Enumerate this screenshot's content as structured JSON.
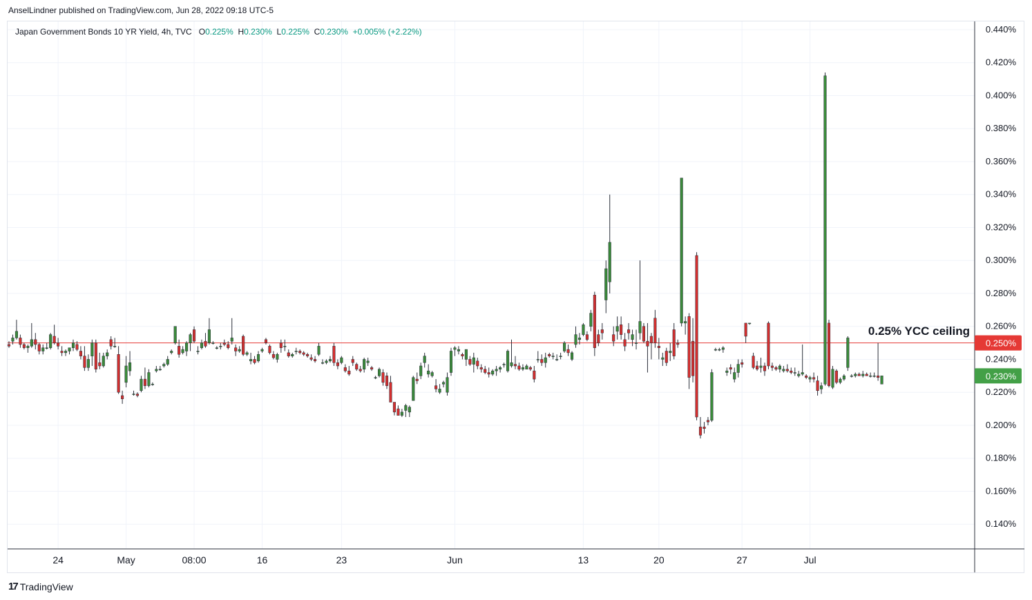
{
  "publisher": "AnselLindner published on TradingView.com, Jun 28, 2022 09:18 UTC-5",
  "legend": {
    "symbol": "Japan Government Bonds 10 YR Yield, 4h, TVC",
    "open_label": "O",
    "open": "0.225%",
    "high_label": "H",
    "high": "0.230%",
    "low_label": "L",
    "low": "0.225%",
    "close_label": "C",
    "close": "0.230%",
    "change": "+0.005% (+2.22%)"
  },
  "annotation": "0.25% YCC ceiling",
  "footer": {
    "brand": "TradingView",
    "icon": "tradingview-logo-icon"
  },
  "colors": {
    "up": "#3a8a3a",
    "down": "#d32f2f",
    "ceiling": "#e53935",
    "last_price": "#43a047",
    "grid": "#f0f3fa"
  },
  "chart_data": {
    "type": "candlestick",
    "title": "Japan Government Bonds 10 YR Yield, 4h, TVC",
    "ylim": [
      0.125,
      0.445
    ],
    "y_ticks": [
      "0.140%",
      "0.160%",
      "0.180%",
      "0.200%",
      "0.220%",
      "0.240%",
      "0.260%",
      "0.280%",
      "0.300%",
      "0.320%",
      "0.340%",
      "0.360%",
      "0.380%",
      "0.400%",
      "0.420%",
      "0.440%"
    ],
    "x_ticks": [
      {
        "label": "24",
        "bar": 13
      },
      {
        "label": "May",
        "bar": 31
      },
      {
        "label": "08:00",
        "bar": 49
      },
      {
        "label": "16",
        "bar": 67
      },
      {
        "label": "23",
        "bar": 88
      },
      {
        "label": "Jun",
        "bar": 118
      },
      {
        "label": "13",
        "bar": 152
      },
      {
        "label": "20",
        "bar": 172
      },
      {
        "label": "27",
        "bar": 194
      },
      {
        "label": "Jul",
        "bar": 212
      }
    ],
    "ceiling": {
      "value": 0.25,
      "label": "0.250%"
    },
    "last_price": {
      "value": 0.23,
      "label": "0.230%"
    },
    "candles": [
      [
        0.249,
        0.251,
        0.247,
        0.248
      ],
      [
        0.251,
        0.255,
        0.249,
        0.253
      ],
      [
        0.253,
        0.264,
        0.252,
        0.257
      ],
      [
        0.253,
        0.255,
        0.247,
        0.249
      ],
      [
        0.249,
        0.25,
        0.246,
        0.247
      ],
      [
        0.247,
        0.249,
        0.244,
        0.248
      ],
      [
        0.248,
        0.262,
        0.247,
        0.252
      ],
      [
        0.252,
        0.256,
        0.246,
        0.249
      ],
      [
        0.249,
        0.25,
        0.243,
        0.245
      ],
      [
        0.245,
        0.249,
        0.243,
        0.247
      ],
      [
        0.247,
        0.25,
        0.246,
        0.247
      ],
      [
        0.247,
        0.256,
        0.246,
        0.255
      ],
      [
        0.254,
        0.261,
        0.249,
        0.25
      ],
      [
        0.25,
        0.253,
        0.246,
        0.248
      ],
      [
        0.245,
        0.248,
        0.242,
        0.244
      ],
      [
        0.244,
        0.246,
        0.242,
        0.245
      ],
      [
        0.245,
        0.247,
        0.243,
        0.247
      ],
      [
        0.247,
        0.252,
        0.245,
        0.25
      ],
      [
        0.249,
        0.251,
        0.245,
        0.246
      ],
      [
        0.245,
        0.248,
        0.24,
        0.242
      ],
      [
        0.242,
        0.248,
        0.233,
        0.235
      ],
      [
        0.235,
        0.243,
        0.233,
        0.24
      ],
      [
        0.242,
        0.252,
        0.236,
        0.25
      ],
      [
        0.25,
        0.252,
        0.232,
        0.234
      ],
      [
        0.238,
        0.244,
        0.234,
        0.236
      ],
      [
        0.236,
        0.244,
        0.235,
        0.242
      ],
      [
        0.242,
        0.246,
        0.24,
        0.244
      ],
      [
        0.252,
        0.254,
        0.246,
        0.248
      ],
      [
        0.248,
        0.253,
        0.247,
        0.248
      ],
      [
        0.243,
        0.248,
        0.219,
        0.22
      ],
      [
        0.218,
        0.221,
        0.213,
        0.216
      ],
      [
        0.226,
        0.242,
        0.223,
        0.236
      ],
      [
        0.233,
        0.245,
        0.23,
        0.238
      ],
      [
        0.219,
        0.221,
        0.218,
        0.219
      ],
      [
        0.219,
        0.22,
        0.217,
        0.218
      ],
      [
        0.221,
        0.23,
        0.22,
        0.228
      ],
      [
        0.228,
        0.235,
        0.222,
        0.224
      ],
      [
        0.224,
        0.234,
        0.223,
        0.232
      ],
      [
        0.225,
        0.226,
        0.224,
        0.225
      ],
      [
        0.233,
        0.236,
        0.232,
        0.234
      ],
      [
        0.234,
        0.236,
        0.233,
        0.234
      ],
      [
        0.236,
        0.238,
        0.235,
        0.237
      ],
      [
        0.237,
        0.242,
        0.236,
        0.24
      ],
      [
        0.244,
        0.246,
        0.243,
        0.245
      ],
      [
        0.25,
        0.26,
        0.249,
        0.26
      ],
      [
        0.248,
        0.252,
        0.241,
        0.243
      ],
      [
        0.244,
        0.248,
        0.243,
        0.246
      ],
      [
        0.245,
        0.251,
        0.242,
        0.25
      ],
      [
        0.25,
        0.256,
        0.245,
        0.255
      ],
      [
        0.258,
        0.26,
        0.25,
        0.251
      ],
      [
        0.245,
        0.248,
        0.243,
        0.245
      ],
      [
        0.247,
        0.252,
        0.246,
        0.25
      ],
      [
        0.251,
        0.256,
        0.247,
        0.248
      ],
      [
        0.25,
        0.265,
        0.249,
        0.258
      ],
      [
        0.25,
        0.251,
        0.249,
        0.25
      ],
      [
        0.247,
        0.248,
        0.246,
        0.247
      ],
      [
        0.248,
        0.25,
        0.246,
        0.248
      ],
      [
        0.25,
        0.252,
        0.248,
        0.249
      ],
      [
        0.249,
        0.251,
        0.246,
        0.247
      ],
      [
        0.251,
        0.265,
        0.249,
        0.253
      ],
      [
        0.247,
        0.249,
        0.242,
        0.245
      ],
      [
        0.245,
        0.248,
        0.244,
        0.246
      ],
      [
        0.254,
        0.255,
        0.242,
        0.243
      ],
      [
        0.243,
        0.245,
        0.242,
        0.244
      ],
      [
        0.239,
        0.244,
        0.237,
        0.24
      ],
      [
        0.24,
        0.242,
        0.237,
        0.238
      ],
      [
        0.239,
        0.245,
        0.238,
        0.243
      ],
      [
        0.245,
        0.247,
        0.244,
        0.246
      ],
      [
        0.252,
        0.253,
        0.249,
        0.25
      ],
      [
        0.248,
        0.249,
        0.243,
        0.244
      ],
      [
        0.243,
        0.245,
        0.24,
        0.241
      ],
      [
        0.24,
        0.244,
        0.238,
        0.243
      ],
      [
        0.25,
        0.252,
        0.244,
        0.247
      ],
      [
        0.248,
        0.252,
        0.245,
        0.248
      ],
      [
        0.244,
        0.246,
        0.241,
        0.242
      ],
      [
        0.242,
        0.244,
        0.241,
        0.243
      ],
      [
        0.245,
        0.247,
        0.243,
        0.245
      ],
      [
        0.245,
        0.246,
        0.243,
        0.244
      ],
      [
        0.244,
        0.245,
        0.242,
        0.243
      ],
      [
        0.243,
        0.244,
        0.241,
        0.242
      ],
      [
        0.241,
        0.243,
        0.239,
        0.24
      ],
      [
        0.24,
        0.242,
        0.238,
        0.239
      ],
      [
        0.243,
        0.25,
        0.242,
        0.248
      ],
      [
        0.238,
        0.24,
        0.237,
        0.238
      ],
      [
        0.238,
        0.24,
        0.237,
        0.239
      ],
      [
        0.239,
        0.242,
        0.238,
        0.24
      ],
      [
        0.248,
        0.25,
        0.236,
        0.238
      ],
      [
        0.238,
        0.24,
        0.234,
        0.236
      ],
      [
        0.238,
        0.242,
        0.237,
        0.241
      ],
      [
        0.235,
        0.237,
        0.232,
        0.233
      ],
      [
        0.233,
        0.236,
        0.23,
        0.231
      ],
      [
        0.24,
        0.242,
        0.236,
        0.238
      ],
      [
        0.237,
        0.238,
        0.233,
        0.234
      ],
      [
        0.234,
        0.236,
        0.232,
        0.233
      ],
      [
        0.234,
        0.241,
        0.232,
        0.24
      ],
      [
        0.238,
        0.241,
        0.236,
        0.239
      ],
      [
        0.235,
        0.236,
        0.233,
        0.234
      ],
      [
        0.229,
        0.23,
        0.228,
        0.229
      ],
      [
        0.23,
        0.235,
        0.229,
        0.234
      ],
      [
        0.232,
        0.234,
        0.224,
        0.226
      ],
      [
        0.23,
        0.232,
        0.222,
        0.224
      ],
      [
        0.226,
        0.23,
        0.214,
        0.214
      ],
      [
        0.214,
        0.214,
        0.206,
        0.208
      ],
      [
        0.21,
        0.212,
        0.206,
        0.206
      ],
      [
        0.206,
        0.21,
        0.205,
        0.208
      ],
      [
        0.209,
        0.213,
        0.205,
        0.212
      ],
      [
        0.208,
        0.212,
        0.205,
        0.211
      ],
      [
        0.215,
        0.23,
        0.215,
        0.229
      ],
      [
        0.228,
        0.232,
        0.225,
        0.227
      ],
      [
        0.23,
        0.238,
        0.228,
        0.236
      ],
      [
        0.238,
        0.244,
        0.235,
        0.242
      ],
      [
        0.231,
        0.237,
        0.229,
        0.233
      ],
      [
        0.23,
        0.233,
        0.229,
        0.232
      ],
      [
        0.224,
        0.228,
        0.22,
        0.222
      ],
      [
        0.22,
        0.225,
        0.219,
        0.222
      ],
      [
        0.225,
        0.227,
        0.223,
        0.226
      ],
      [
        0.22,
        0.232,
        0.218,
        0.229
      ],
      [
        0.232,
        0.247,
        0.23,
        0.245
      ],
      [
        0.246,
        0.248,
        0.242,
        0.247
      ],
      [
        0.245,
        0.248,
        0.243,
        0.246
      ],
      [
        0.243,
        0.244,
        0.24,
        0.242
      ],
      [
        0.24,
        0.246,
        0.236,
        0.246
      ],
      [
        0.24,
        0.242,
        0.236,
        0.237
      ],
      [
        0.237,
        0.244,
        0.232,
        0.241
      ],
      [
        0.239,
        0.241,
        0.234,
        0.236
      ],
      [
        0.235,
        0.237,
        0.232,
        0.234
      ],
      [
        0.234,
        0.236,
        0.231,
        0.232
      ],
      [
        0.232,
        0.235,
        0.229,
        0.231
      ],
      [
        0.231,
        0.234,
        0.23,
        0.233
      ],
      [
        0.233,
        0.236,
        0.23,
        0.234
      ],
      [
        0.234,
        0.236,
        0.232,
        0.235
      ],
      [
        0.237,
        0.238,
        0.235,
        0.237
      ],
      [
        0.233,
        0.246,
        0.232,
        0.245
      ],
      [
        0.236,
        0.252,
        0.235,
        0.238
      ],
      [
        0.237,
        0.242,
        0.234,
        0.236
      ],
      [
        0.236,
        0.238,
        0.233,
        0.234
      ],
      [
        0.234,
        0.237,
        0.233,
        0.235
      ],
      [
        0.234,
        0.237,
        0.234,
        0.236
      ],
      [
        0.235,
        0.236,
        0.233,
        0.234
      ],
      [
        0.233,
        0.236,
        0.226,
        0.228
      ],
      [
        0.24,
        0.245,
        0.238,
        0.24
      ],
      [
        0.24,
        0.243,
        0.236,
        0.238
      ],
      [
        0.238,
        0.244,
        0.235,
        0.241
      ],
      [
        0.243,
        0.244,
        0.241,
        0.242
      ],
      [
        0.242,
        0.244,
        0.24,
        0.242
      ],
      [
        0.24,
        0.243,
        0.239,
        0.24
      ],
      [
        0.242,
        0.244,
        0.24,
        0.242
      ],
      [
        0.245,
        0.251,
        0.244,
        0.25
      ],
      [
        0.246,
        0.249,
        0.242,
        0.244
      ],
      [
        0.24,
        0.245,
        0.239,
        0.244
      ],
      [
        0.249,
        0.26,
        0.247,
        0.255
      ],
      [
        0.252,
        0.256,
        0.249,
        0.253
      ],
      [
        0.255,
        0.262,
        0.254,
        0.261
      ],
      [
        0.255,
        0.257,
        0.251,
        0.252
      ],
      [
        0.26,
        0.27,
        0.257,
        0.268
      ],
      [
        0.279,
        0.281,
        0.242,
        0.247
      ],
      [
        0.255,
        0.258,
        0.248,
        0.25
      ],
      [
        0.258,
        0.262,
        0.252,
        0.256
      ],
      [
        0.276,
        0.3,
        0.268,
        0.295
      ],
      [
        0.287,
        0.34,
        0.28,
        0.311
      ],
      [
        0.255,
        0.26,
        0.248,
        0.251
      ],
      [
        0.257,
        0.266,
        0.252,
        0.26
      ],
      [
        0.261,
        0.266,
        0.252,
        0.255
      ],
      [
        0.252,
        0.256,
        0.245,
        0.248
      ],
      [
        0.258,
        0.262,
        0.252,
        0.256
      ],
      [
        0.252,
        0.258,
        0.248,
        0.255
      ],
      [
        0.25,
        0.258,
        0.246,
        0.25
      ],
      [
        0.256,
        0.3,
        0.252,
        0.263
      ],
      [
        0.26,
        0.262,
        0.25,
        0.251
      ],
      [
        0.251,
        0.262,
        0.232,
        0.248
      ],
      [
        0.254,
        0.256,
        0.24,
        0.25
      ],
      [
        0.265,
        0.27,
        0.247,
        0.25
      ],
      [
        0.248,
        0.253,
        0.24,
        0.247
      ],
      [
        0.24,
        0.244,
        0.236,
        0.241
      ],
      [
        0.245,
        0.247,
        0.236,
        0.238
      ],
      [
        0.244,
        0.25,
        0.239,
        0.245
      ],
      [
        0.258,
        0.262,
        0.24,
        0.242
      ],
      [
        0.25,
        0.252,
        0.247,
        0.249
      ],
      [
        0.262,
        0.35,
        0.26,
        0.35
      ],
      [
        0.262,
        0.266,
        0.255,
        0.263
      ],
      [
        0.266,
        0.268,
        0.222,
        0.229
      ],
      [
        0.251,
        0.265,
        0.226,
        0.23
      ],
      [
        0.303,
        0.305,
        0.203,
        0.205
      ],
      [
        0.199,
        0.205,
        0.192,
        0.194
      ],
      [
        0.199,
        0.202,
        0.195,
        0.198
      ],
      [
        0.203,
        0.205,
        0.2,
        0.202
      ],
      [
        0.203,
        0.234,
        0.202,
        0.232
      ],
      [
        0.246,
        0.247,
        0.245,
        0.246
      ],
      [
        0.246,
        0.247,
        0.245,
        0.246
      ],
      [
        0.246,
        0.248,
        0.244,
        0.247
      ],
      [
        0.232,
        0.235,
        0.23,
        0.233
      ],
      [
        0.235,
        0.237,
        0.231,
        0.234
      ],
      [
        0.228,
        0.235,
        0.226,
        0.232
      ],
      [
        0.232,
        0.24,
        0.229,
        0.237
      ],
      [
        0.238,
        0.24,
        0.235,
        0.237
      ],
      [
        0.262,
        0.262,
        0.25,
        0.254
      ],
      [
        0.262,
        0.262,
        0.261,
        0.262
      ],
      [
        0.242,
        0.244,
        0.234,
        0.235
      ],
      [
        0.236,
        0.239,
        0.233,
        0.234
      ],
      [
        0.235,
        0.241,
        0.232,
        0.236
      ],
      [
        0.236,
        0.238,
        0.23,
        0.233
      ],
      [
        0.262,
        0.263,
        0.234,
        0.236
      ],
      [
        0.236,
        0.238,
        0.233,
        0.235
      ],
      [
        0.235,
        0.236,
        0.233,
        0.234
      ],
      [
        0.234,
        0.237,
        0.232,
        0.236
      ],
      [
        0.233,
        0.236,
        0.232,
        0.234
      ],
      [
        0.234,
        0.237,
        0.232,
        0.233
      ],
      [
        0.233,
        0.235,
        0.231,
        0.232
      ],
      [
        0.232,
        0.235,
        0.23,
        0.232
      ],
      [
        0.23,
        0.233,
        0.229,
        0.231
      ],
      [
        0.231,
        0.249,
        0.23,
        0.232
      ],
      [
        0.23,
        0.231,
        0.228,
        0.229
      ],
      [
        0.228,
        0.23,
        0.226,
        0.229
      ],
      [
        0.229,
        0.232,
        0.226,
        0.228
      ],
      [
        0.227,
        0.23,
        0.218,
        0.221
      ],
      [
        0.222,
        0.226,
        0.219,
        0.224
      ],
      [
        0.225,
        0.414,
        0.224,
        0.412
      ],
      [
        0.262,
        0.264,
        0.223,
        0.224
      ],
      [
        0.223,
        0.236,
        0.222,
        0.234
      ],
      [
        0.233,
        0.234,
        0.225,
        0.226
      ],
      [
        0.226,
        0.229,
        0.225,
        0.228
      ],
      [
        0.228,
        0.231,
        0.227,
        0.23
      ],
      [
        0.235,
        0.254,
        0.233,
        0.253
      ],
      [
        0.23,
        0.231,
        0.229,
        0.23
      ],
      [
        0.23,
        0.232,
        0.229,
        0.231
      ],
      [
        0.231,
        0.232,
        0.23,
        0.23
      ],
      [
        0.23,
        0.233,
        0.229,
        0.231
      ],
      [
        0.231,
        0.232,
        0.23,
        0.23
      ],
      [
        0.23,
        0.232,
        0.229,
        0.23
      ],
      [
        0.23,
        0.232,
        0.229,
        0.23
      ],
      [
        0.23,
        0.25,
        0.227,
        0.229
      ],
      [
        0.225,
        0.23,
        0.225,
        0.23
      ]
    ]
  }
}
